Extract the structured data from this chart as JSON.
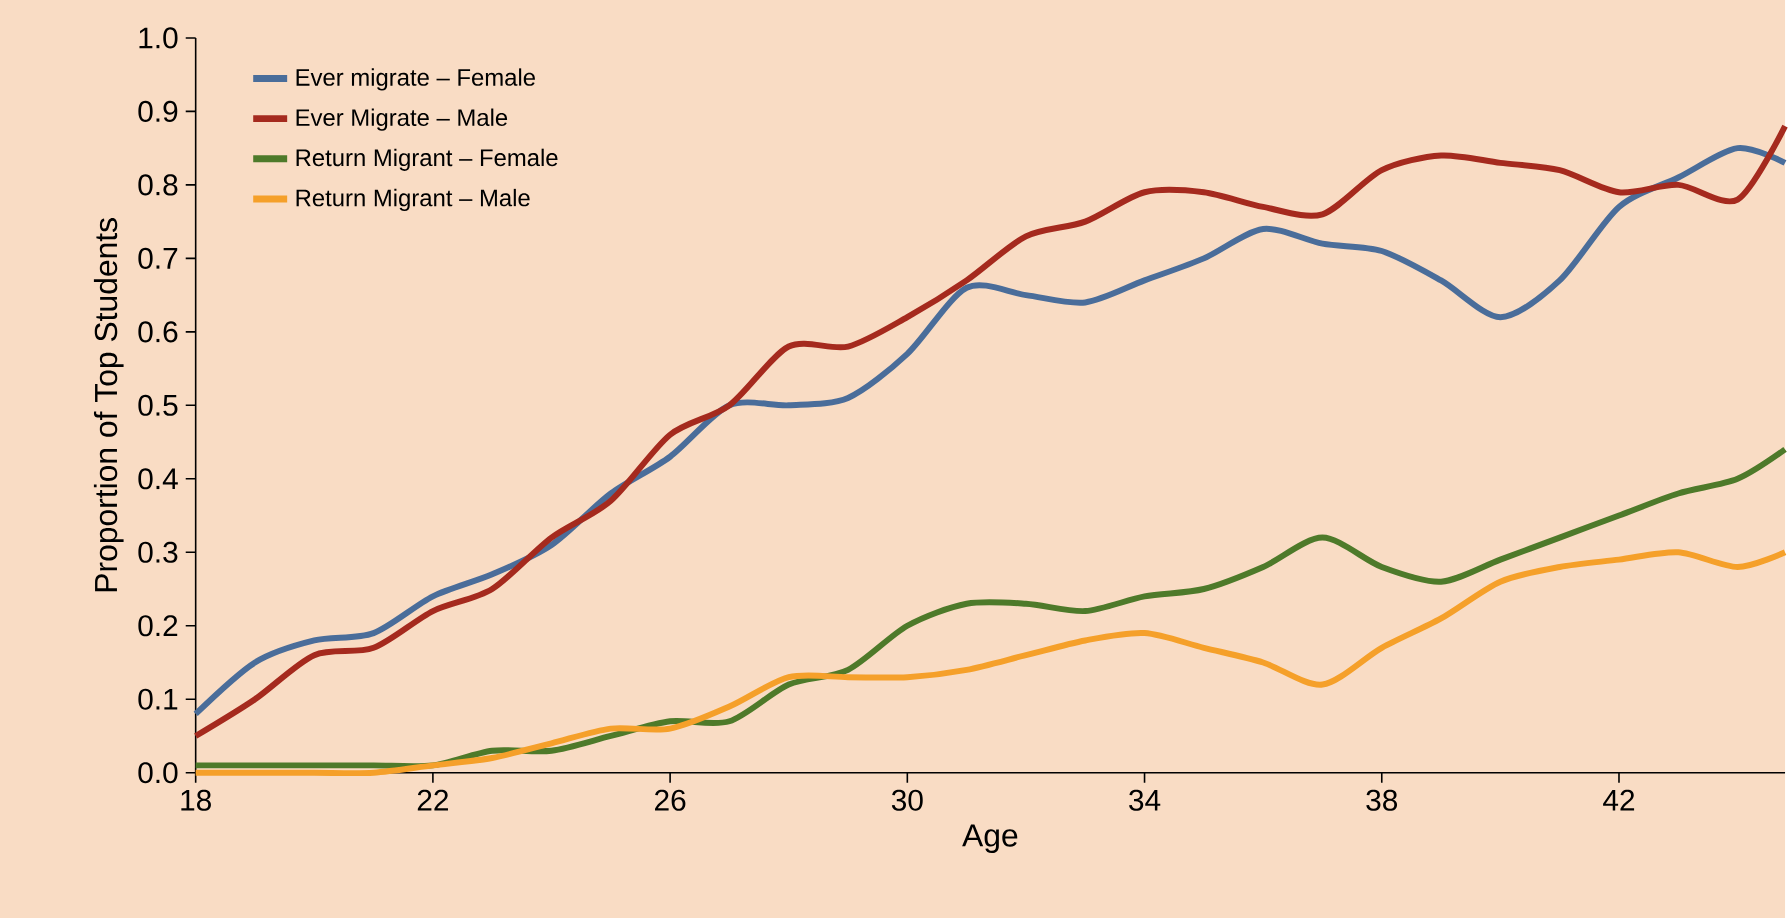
{
  "chart_data": {
    "type": "line",
    "xlabel": "Age",
    "ylabel": "Proportion of Top Students",
    "xlim": [
      18,
      44.8
    ],
    "ylim": [
      0,
      1
    ],
    "xticks": [
      18,
      22,
      26,
      30,
      34,
      38,
      42
    ],
    "yticks": [
      {
        "value": 0,
        "label": "0.0"
      },
      {
        "value": 0.1,
        "label": "0.1"
      },
      {
        "value": 0.2,
        "label": "0.2"
      },
      {
        "value": 0.3,
        "label": "0.3"
      },
      {
        "value": 0.4,
        "label": "0.4"
      },
      {
        "value": 0.5,
        "label": "0.5"
      },
      {
        "value": 0.6,
        "label": "0.6"
      },
      {
        "value": 0.7,
        "label": "0.7"
      },
      {
        "value": 0.8,
        "label": "0.8"
      },
      {
        "value": 0.9,
        "label": "0.9"
      },
      {
        "value": 1,
        "label": "1.0"
      }
    ],
    "x": [
      18,
      19,
      20,
      21,
      22,
      23,
      24,
      25,
      26,
      27,
      28,
      29,
      30,
      31,
      32,
      33,
      34,
      35,
      36,
      37,
      38,
      39,
      40,
      41,
      42,
      43,
      44,
      44.8
    ],
    "grid": false,
    "legend": "top left",
    "marker": "none",
    "line_style": "solid",
    "series": [
      {
        "name": "Ever migrate – Female",
        "color": "#4a6d9a",
        "values": [
          0.08,
          0.15,
          0.18,
          0.19,
          0.24,
          0.27,
          0.31,
          0.38,
          0.43,
          0.5,
          0.5,
          0.51,
          0.57,
          0.66,
          0.65,
          0.64,
          0.67,
          0.7,
          0.74,
          0.72,
          0.71,
          0.67,
          0.62,
          0.67,
          0.77,
          0.81,
          0.85,
          0.83
        ]
      },
      {
        "name": "Ever Migrate – Male",
        "color": "#a52a1e",
        "values": [
          0.05,
          0.1,
          0.16,
          0.17,
          0.22,
          0.25,
          0.32,
          0.37,
          0.46,
          0.5,
          0.58,
          0.58,
          0.62,
          0.67,
          0.73,
          0.75,
          0.79,
          0.79,
          0.77,
          0.76,
          0.82,
          0.84,
          0.83,
          0.82,
          0.79,
          0.8,
          0.78,
          0.88
        ]
      },
      {
        "name": "Return Migrant – Female",
        "color": "#4e7a2a",
        "values": [
          0.01,
          0.01,
          0.01,
          0.01,
          0.01,
          0.03,
          0.03,
          0.05,
          0.07,
          0.07,
          0.12,
          0.14,
          0.2,
          0.23,
          0.23,
          0.22,
          0.24,
          0.25,
          0.28,
          0.32,
          0.28,
          0.26,
          0.29,
          0.32,
          0.35,
          0.38,
          0.4,
          0.44
        ]
      },
      {
        "name": "Return Migrant – Male",
        "color": "#f5a02a",
        "values": [
          0,
          0,
          0,
          0,
          0.01,
          0.02,
          0.04,
          0.06,
          0.06,
          0.09,
          0.13,
          0.13,
          0.13,
          0.14,
          0.16,
          0.18,
          0.19,
          0.17,
          0.15,
          0.12,
          0.17,
          0.21,
          0.26,
          0.28,
          0.29,
          0.3,
          0.28,
          0.3
        ]
      }
    ]
  }
}
